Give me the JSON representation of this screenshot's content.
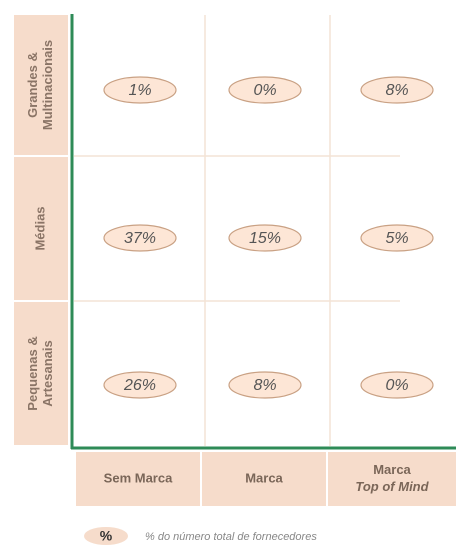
{
  "rows": [
    [
      "Grandes &",
      "Multinacionais"
    ],
    [
      "Médias"
    ],
    [
      "Pequenas &",
      "Artesanais"
    ]
  ],
  "columns": [
    [
      "Sem Marca"
    ],
    [
      "Marca"
    ],
    [
      "Marca",
      "Top of Mind"
    ]
  ],
  "cells": [
    [
      "1%",
      "0%",
      "8%"
    ],
    [
      "37%",
      "15%",
      "5%"
    ],
    [
      "26%",
      "8%",
      "0%"
    ]
  ],
  "legend": {
    "symbol": "%",
    "text": "% do número total de fornecedores"
  }
}
